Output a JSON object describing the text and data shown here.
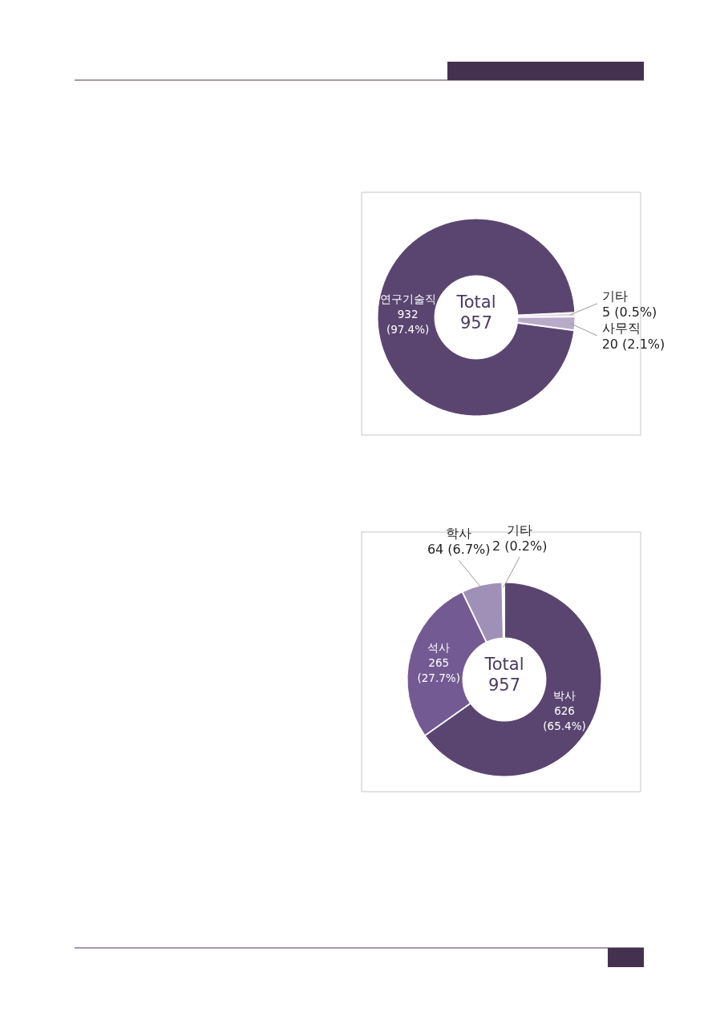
{
  "chart_data": [
    {
      "type": "donut",
      "categories": [
        "연구기술직",
        "기타",
        "사무직"
      ],
      "values": [
        932,
        5,
        20
      ],
      "colors": [
        "#5a4570",
        "#ddd5e4",
        "#b8aac9"
      ],
      "value_labels": [
        "932 (97.4%)",
        "5 (0.5%)",
        "20 (2.1%)"
      ],
      "annotations": [
        "Total 957"
      ]
    },
    {
      "type": "donut",
      "categories": [
        "박사",
        "석사",
        "학사",
        "기타"
      ],
      "values": [
        626,
        265,
        64,
        2
      ],
      "colors": [
        "#5a4570",
        "#745a92",
        "#a090b8",
        "#e2dbe9"
      ],
      "value_labels": [
        "626 (65.4%)",
        "265 (27.7%)",
        "64 (6.7%)",
        "2 (0.2%)"
      ],
      "annotations": [
        "Total 957"
      ]
    }
  ]
}
